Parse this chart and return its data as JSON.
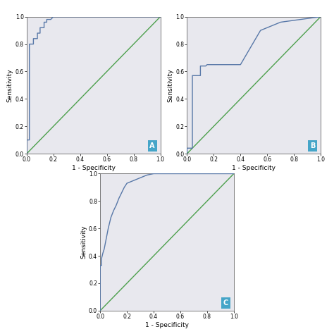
{
  "roc_A": {
    "fpr": [
      0.0,
      0.0,
      0.0,
      0.02,
      0.02,
      0.04,
      0.05,
      0.05,
      0.07,
      0.08,
      0.08,
      0.1,
      0.1,
      0.12,
      0.13,
      0.13,
      0.15,
      0.15,
      0.18,
      0.2,
      0.25,
      1.0
    ],
    "tpr": [
      0.0,
      0.08,
      0.1,
      0.1,
      0.8,
      0.8,
      0.8,
      0.84,
      0.84,
      0.84,
      0.88,
      0.88,
      0.92,
      0.92,
      0.92,
      0.96,
      0.96,
      0.98,
      0.98,
      1.0,
      1.0,
      1.0
    ]
  },
  "roc_B": {
    "fpr": [
      0.0,
      0.0,
      0.02,
      0.03,
      0.04,
      0.04,
      0.06,
      0.08,
      0.1,
      0.1,
      0.13,
      0.14,
      0.15,
      0.2,
      0.25,
      0.3,
      0.4,
      0.55,
      0.6,
      0.65,
      0.7,
      1.0
    ],
    "tpr": [
      0.0,
      0.04,
      0.04,
      0.04,
      0.04,
      0.57,
      0.57,
      0.57,
      0.57,
      0.64,
      0.64,
      0.64,
      0.65,
      0.65,
      0.65,
      0.65,
      0.65,
      0.9,
      0.92,
      0.94,
      0.96,
      1.0
    ]
  },
  "roc_C": {
    "fpr": [
      0.0,
      0.0,
      0.01,
      0.01,
      0.02,
      0.03,
      0.04,
      0.05,
      0.06,
      0.08,
      0.1,
      0.12,
      0.14,
      0.16,
      0.18,
      0.2,
      0.25,
      0.3,
      0.35,
      0.4,
      1.0
    ],
    "tpr": [
      0.0,
      0.33,
      0.33,
      0.38,
      0.42,
      0.45,
      0.5,
      0.55,
      0.6,
      0.68,
      0.73,
      0.77,
      0.82,
      0.86,
      0.9,
      0.93,
      0.95,
      0.97,
      0.99,
      1.0,
      1.0
    ]
  },
  "roc_color": "#5878a8",
  "diagonal_color": "#4da04d",
  "bg_color": "#e8e8ee",
  "label_bg": "#45a5c8",
  "label_text": "white",
  "xlabel": "1 - Specificity",
  "ylabel": "Sensitivity",
  "tick_vals": [
    0.0,
    0.2,
    0.4,
    0.6,
    0.8,
    1.0
  ],
  "tick_labels": [
    "0.0",
    "0.2",
    "0.4",
    "0.6",
    "0.8",
    "1.0"
  ],
  "labels": [
    "A",
    "B",
    "C"
  ],
  "figsize": [
    4.74,
    4.74
  ],
  "dpi": 100
}
